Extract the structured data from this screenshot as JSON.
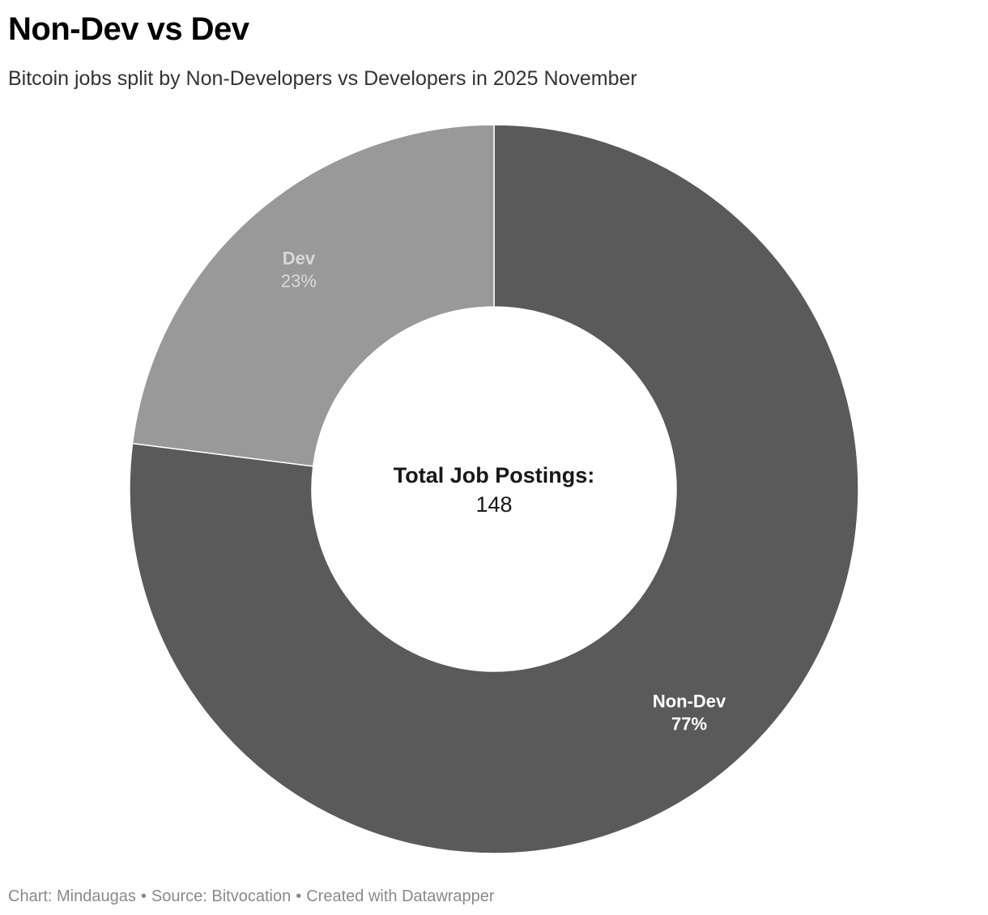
{
  "header": {
    "title": "Non-Dev vs Dev",
    "subtitle": "Bitcoin jobs split by Non-Developers vs Developers in 2025 November"
  },
  "chart_data": {
    "type": "pie",
    "variant": "donut",
    "title": "Non-Dev vs Dev",
    "subtitle": "Bitcoin jobs split by Non-Developers vs Developers in 2025 November",
    "slices": [
      {
        "label": "Non-Dev",
        "percent_label": "77%",
        "value": 77,
        "color": "#5a5a5a",
        "label_color": "#ffffff"
      },
      {
        "label": "Dev",
        "percent_label": "23%",
        "value": 23,
        "color": "#999999",
        "label_color": "#d9d9d9"
      }
    ],
    "center": {
      "label": "Total Job Postings:",
      "value": "148"
    }
  },
  "footer": {
    "chart_credit": "Chart: Mindaugas",
    "source": "Source: Bitvocation",
    "tool": "Created with Datawrapper"
  }
}
